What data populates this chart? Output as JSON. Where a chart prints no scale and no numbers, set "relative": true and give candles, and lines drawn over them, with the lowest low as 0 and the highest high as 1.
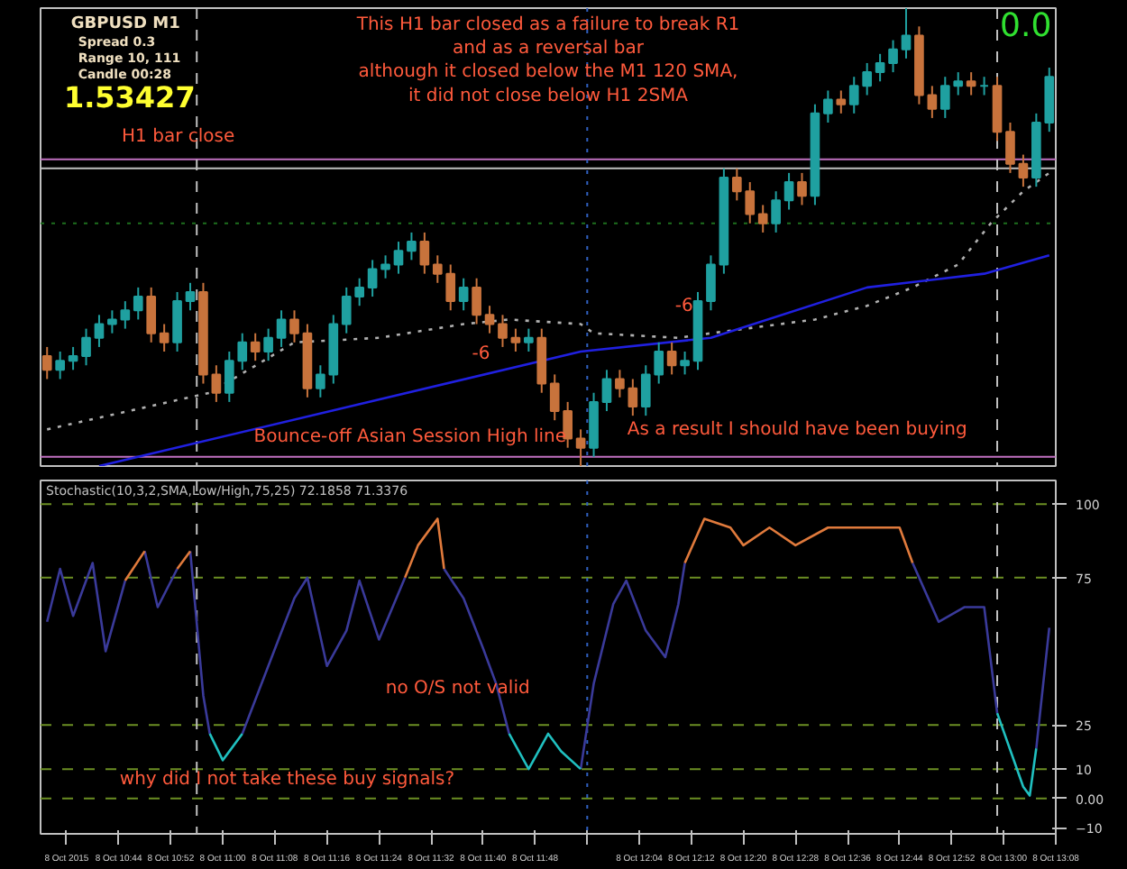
{
  "chart_data": [
    {
      "type": "candlestick",
      "relative": true,
      "tick_labels": false,
      "xlim": [
        "2015-10-08T10:32",
        "2015-10-08T13:08"
      ],
      "x": [
        "2015-10-08T10:33",
        "2015-10-08T10:35",
        "2015-10-08T10:37",
        "2015-10-08T10:39",
        "2015-10-08T10:41",
        "2015-10-08T10:43",
        "2015-10-08T10:45",
        "2015-10-08T10:47",
        "2015-10-08T10:49",
        "2015-10-08T10:51",
        "2015-10-08T10:53",
        "2015-10-08T10:55",
        "2015-10-08T10:57",
        "2015-10-08T10:59",
        "2015-10-08T11:01",
        "2015-10-08T11:03",
        "2015-10-08T11:05",
        "2015-10-08T11:07",
        "2015-10-08T11:09",
        "2015-10-08T11:11",
        "2015-10-08T11:13",
        "2015-10-08T11:15",
        "2015-10-08T11:17",
        "2015-10-08T11:19",
        "2015-10-08T11:21",
        "2015-10-08T11:23",
        "2015-10-08T11:25",
        "2015-10-08T11:27",
        "2015-10-08T11:29",
        "2015-10-08T11:31",
        "2015-10-08T11:33",
        "2015-10-08T11:35",
        "2015-10-08T11:37",
        "2015-10-08T11:39",
        "2015-10-08T11:41",
        "2015-10-08T11:43",
        "2015-10-08T11:45",
        "2015-10-08T11:47",
        "2015-10-08T11:49",
        "2015-10-08T11:51",
        "2015-10-08T11:53",
        "2015-10-08T11:55",
        "2015-10-08T11:57",
        "2015-10-08T11:59",
        "2015-10-08T12:01",
        "2015-10-08T12:03",
        "2015-10-08T12:05",
        "2015-10-08T12:07",
        "2015-10-08T12:09",
        "2015-10-08T12:11",
        "2015-10-08T12:13",
        "2015-10-08T12:15",
        "2015-10-08T12:17",
        "2015-10-08T12:19",
        "2015-10-08T12:21",
        "2015-10-08T12:23",
        "2015-10-08T12:25",
        "2015-10-08T12:27",
        "2015-10-08T12:29",
        "2015-10-08T12:31",
        "2015-10-08T12:33",
        "2015-10-08T12:35",
        "2015-10-08T12:37",
        "2015-10-08T12:39",
        "2015-10-08T12:41",
        "2015-10-08T12:43",
        "2015-10-08T12:45",
        "2015-10-08T12:47",
        "2015-10-08T12:49",
        "2015-10-08T12:51",
        "2015-10-08T12:53",
        "2015-10-08T12:55",
        "2015-10-08T12:57",
        "2015-10-08T12:59",
        "2015-10-08T13:01",
        "2015-10-08T13:03",
        "2015-10-08T13:05",
        "2015-10-08T13:07"
      ],
      "ohlc": [
        [
          0.24,
          0.26,
          0.19,
          0.21
        ],
        [
          0.21,
          0.25,
          0.19,
          0.23
        ],
        [
          0.23,
          0.26,
          0.21,
          0.24
        ],
        [
          0.24,
          0.3,
          0.22,
          0.28
        ],
        [
          0.28,
          0.33,
          0.26,
          0.31
        ],
        [
          0.31,
          0.34,
          0.29,
          0.32
        ],
        [
          0.32,
          0.36,
          0.3,
          0.34
        ],
        [
          0.34,
          0.39,
          0.32,
          0.37
        ],
        [
          0.37,
          0.39,
          0.27,
          0.29
        ],
        [
          0.29,
          0.31,
          0.25,
          0.27
        ],
        [
          0.27,
          0.38,
          0.25,
          0.36
        ],
        [
          0.36,
          0.4,
          0.34,
          0.38
        ],
        [
          0.38,
          0.4,
          0.18,
          0.2
        ],
        [
          0.2,
          0.22,
          0.14,
          0.16
        ],
        [
          0.16,
          0.25,
          0.14,
          0.23
        ],
        [
          0.23,
          0.29,
          0.21,
          0.27
        ],
        [
          0.27,
          0.29,
          0.23,
          0.25
        ],
        [
          0.25,
          0.3,
          0.23,
          0.28
        ],
        [
          0.28,
          0.34,
          0.26,
          0.32
        ],
        [
          0.32,
          0.34,
          0.27,
          0.29
        ],
        [
          0.29,
          0.31,
          0.15,
          0.17
        ],
        [
          0.17,
          0.22,
          0.15,
          0.2
        ],
        [
          0.2,
          0.33,
          0.18,
          0.31
        ],
        [
          0.31,
          0.39,
          0.29,
          0.37
        ],
        [
          0.37,
          0.41,
          0.35,
          0.39
        ],
        [
          0.39,
          0.45,
          0.37,
          0.43
        ],
        [
          0.43,
          0.46,
          0.41,
          0.44
        ],
        [
          0.44,
          0.49,
          0.42,
          0.47
        ],
        [
          0.47,
          0.51,
          0.45,
          0.49
        ],
        [
          0.49,
          0.51,
          0.42,
          0.44
        ],
        [
          0.44,
          0.46,
          0.4,
          0.42
        ],
        [
          0.42,
          0.44,
          0.34,
          0.36
        ],
        [
          0.36,
          0.41,
          0.34,
          0.39
        ],
        [
          0.39,
          0.41,
          0.31,
          0.33
        ],
        [
          0.33,
          0.35,
          0.29,
          0.31
        ],
        [
          0.31,
          0.33,
          0.26,
          0.28
        ],
        [
          0.28,
          0.3,
          0.25,
          0.27
        ],
        [
          0.27,
          0.3,
          0.25,
          0.28
        ],
        [
          0.28,
          0.3,
          0.16,
          0.18
        ],
        [
          0.18,
          0.2,
          0.1,
          0.12
        ],
        [
          0.12,
          0.14,
          0.04,
          0.06
        ],
        [
          0.06,
          0.08,
          0,
          0.04
        ],
        [
          0.04,
          0.16,
          0.02,
          0.14
        ],
        [
          0.14,
          0.21,
          0.12,
          0.19
        ],
        [
          0.19,
          0.21,
          0.15,
          0.17
        ],
        [
          0.17,
          0.19,
          0.11,
          0.13
        ],
        [
          0.13,
          0.22,
          0.11,
          0.2
        ],
        [
          0.2,
          0.27,
          0.18,
          0.25
        ],
        [
          0.25,
          0.27,
          0.2,
          0.22
        ],
        [
          0.22,
          0.25,
          0.2,
          0.23
        ],
        [
          0.23,
          0.38,
          0.21,
          0.36
        ],
        [
          0.36,
          0.46,
          0.34,
          0.44
        ],
        [
          0.44,
          0.65,
          0.42,
          0.63
        ],
        [
          0.63,
          0.65,
          0.58,
          0.6
        ],
        [
          0.6,
          0.62,
          0.53,
          0.55
        ],
        [
          0.55,
          0.57,
          0.51,
          0.53
        ],
        [
          0.53,
          0.6,
          0.51,
          0.58
        ],
        [
          0.58,
          0.64,
          0.56,
          0.62
        ],
        [
          0.62,
          0.64,
          0.57,
          0.59
        ],
        [
          0.59,
          0.79,
          0.57,
          0.77
        ],
        [
          0.77,
          0.82,
          0.75,
          0.8
        ],
        [
          0.8,
          0.82,
          0.77,
          0.79
        ],
        [
          0.79,
          0.85,
          0.77,
          0.83
        ],
        [
          0.83,
          0.88,
          0.81,
          0.86
        ],
        [
          0.86,
          0.9,
          0.84,
          0.88
        ],
        [
          0.88,
          0.93,
          0.86,
          0.91
        ],
        [
          0.91,
          1,
          0.89,
          0.94
        ],
        [
          0.94,
          0.96,
          0.79,
          0.81
        ],
        [
          0.81,
          0.83,
          0.76,
          0.78
        ],
        [
          0.78,
          0.85,
          0.76,
          0.83
        ],
        [
          0.83,
          0.86,
          0.81,
          0.84
        ],
        [
          0.84,
          0.86,
          0.81,
          0.83
        ],
        [
          0.83,
          0.85,
          0.81,
          0.83
        ],
        [
          0.83,
          0.85,
          0.71,
          0.73
        ],
        [
          0.73,
          0.75,
          0.64,
          0.66
        ],
        [
          0.66,
          0.68,
          0.61,
          0.63
        ],
        [
          0.63,
          0.77,
          0.61,
          0.75
        ],
        [
          0.75,
          0.87,
          0.73,
          0.85
        ]
      ],
      "colors": [
        "#c8733c",
        "#1fa0a0",
        "#1fa0a0",
        "#1fa0a0",
        "#1fa0a0",
        "#1fa0a0",
        "#1fa0a0",
        "#1fa0a0",
        "#c8733c",
        "#c8733c",
        "#1fa0a0",
        "#1fa0a0",
        "#c8733c",
        "#c8733c",
        "#1fa0a0",
        "#1fa0a0",
        "#c8733c",
        "#1fa0a0",
        "#1fa0a0",
        "#c8733c",
        "#c8733c",
        "#1fa0a0",
        "#1fa0a0",
        "#1fa0a0",
        "#1fa0a0",
        "#1fa0a0",
        "#1fa0a0",
        "#1fa0a0",
        "#1fa0a0",
        "#c8733c",
        "#c8733c",
        "#c8733c",
        "#1fa0a0",
        "#c8733c",
        "#c8733c",
        "#c8733c",
        "#c8733c",
        "#1fa0a0",
        "#c8733c",
        "#c8733c",
        "#c8733c",
        "#c8733c",
        "#1fa0a0",
        "#1fa0a0",
        "#c8733c",
        "#c8733c",
        "#1fa0a0",
        "#1fa0a0",
        "#c8733c",
        "#1fa0a0",
        "#1fa0a0",
        "#1fa0a0",
        "#1fa0a0",
        "#c8733c",
        "#c8733c",
        "#c8733c",
        "#1fa0a0",
        "#1fa0a0",
        "#c8733c",
        "#1fa0a0",
        "#1fa0a0",
        "#c8733c",
        "#1fa0a0",
        "#1fa0a0",
        "#1fa0a0",
        "#1fa0a0",
        "#1fa0a0",
        "#c8733c",
        "#c8733c",
        "#1fa0a0",
        "#1fa0a0",
        "#c8733c",
        "#1fa0a0",
        "#c8733c",
        "#c8733c",
        "#c8733c",
        "#1fa0a0",
        "#1fa0a0"
      ],
      "series": [
        {
          "type": "line",
          "color": "#b0b0b0",
          "line_style": "dotted",
          "x": [
            "2015-10-08T10:33",
            "2015-10-08T10:58",
            "2015-10-08T11:11",
            "2015-10-08T11:24",
            "2015-10-08T11:37",
            "2015-10-08T11:44",
            "2015-10-08T11:55",
            "2015-10-08T11:57",
            "2015-10-08T12:10",
            "2015-10-08T12:15",
            "2015-10-08T12:31",
            "2015-10-08T12:39",
            "2015-10-08T12:46",
            "2015-10-08T12:53",
            "2015-10-08T12:58",
            "2015-10-08T13:03",
            "2015-10-08T13:07"
          ],
          "values": [
            0.08,
            0.16,
            0.27,
            0.28,
            0.31,
            0.32,
            0.31,
            0.29,
            0.28,
            0.29,
            0.32,
            0.35,
            0.39,
            0.44,
            0.53,
            0.6,
            0.64
          ]
        },
        {
          "type": "line",
          "color": "#2020e0",
          "line_style": "solid",
          "x": [
            "2015-10-08T10:41",
            "2015-10-08T11:55",
            "2015-10-08T12:15",
            "2015-10-08T12:39",
            "2015-10-08T12:57",
            "2015-10-08T13:07"
          ],
          "values": [
            0,
            0.25,
            0.28,
            0.39,
            0.42,
            0.46
          ]
        }
      ],
      "ref_lines": [
        {
          "axis": "y",
          "value": 0.67,
          "color": "#c070c0",
          "line_style": "solid"
        },
        {
          "axis": "y",
          "value": 0.65,
          "color": "#c0c0c0",
          "line_style": "solid"
        },
        {
          "axis": "y",
          "value": 0.53,
          "color": "#1e6e1e",
          "line_style": "dotted"
        },
        {
          "axis": "y",
          "value": 0.02,
          "color": "#c070c0",
          "line_style": "solid"
        },
        {
          "axis": "x",
          "value": "2015-10-08T10:56",
          "color": "#c0c0c0",
          "line_style": "dashed"
        },
        {
          "axis": "x",
          "value": "2015-10-08T11:56",
          "color": "#3060c0",
          "line_style": "dotted"
        },
        {
          "axis": "x",
          "value": "2015-10-08T12:59",
          "color": "#c0c0c0",
          "line_style": "dashed"
        }
      ],
      "annotations": [
        "GBPUSD  M1",
        "Spread  0.3",
        "Range  10, 111",
        "Candle  00:28",
        "1.53427",
        "This H1 bar closed as a failure to break R1\nand as a reversal bar\nalthough it closed below the M1 120 SMA,\nit did not close below H1 2SMA",
        "H1 bar close",
        "As a result I should have been buying",
        "0.0",
        "-6",
        "-6",
        "Bounce-off Asian Session High line"
      ]
    },
    {
      "type": "line",
      "title": "Stochastic(10,3,2,SMA,Low/High,75,25) 72.1858 71.3376",
      "xlim": [
        "2015-10-08T10:32",
        "2015-10-08T13:08"
      ],
      "xticks": [
        {
          "value": "2015-10-08T10:36",
          "label": "8 Oct 2015"
        },
        {
          "value": "2015-10-08T10:44",
          "label": "8 Oct 10:44"
        },
        {
          "value": "2015-10-08T10:52",
          "label": "8 Oct 10:52"
        },
        {
          "value": "2015-10-08T11:00",
          "label": "8 Oct 11:00"
        },
        {
          "value": "2015-10-08T11:08",
          "label": "8 Oct 11:08"
        },
        {
          "value": "2015-10-08T11:16",
          "label": "8 Oct 11:16"
        },
        {
          "value": "2015-10-08T11:24",
          "label": "8 Oct 11:24"
        },
        {
          "value": "2015-10-08T11:32",
          "label": "8 Oct 11:32"
        },
        {
          "value": "2015-10-08T11:40",
          "label": "8 Oct 11:40"
        },
        {
          "value": "2015-10-08T11:48",
          "label": "8 Oct 11:48"
        },
        {
          "value": "2015-10-08T11:56",
          "label": null
        },
        {
          "value": "2015-10-08T12:04",
          "label": "8 Oct 12:04"
        },
        {
          "value": "2015-10-08T12:12",
          "label": "8 Oct 12:12"
        },
        {
          "value": "2015-10-08T12:20",
          "label": "8 Oct 12:20"
        },
        {
          "value": "2015-10-08T12:28",
          "label": "8 Oct 12:28"
        },
        {
          "value": "2015-10-08T12:36",
          "label": "8 Oct 12:36"
        },
        {
          "value": "2015-10-08T12:44",
          "label": "8 Oct 12:44"
        },
        {
          "value": "2015-10-08T12:52",
          "label": "8 Oct 12:52"
        },
        {
          "value": "2015-10-08T13:00",
          "label": "8 Oct 13:00"
        },
        {
          "value": "2015-10-08T13:08",
          "label": "8 Oct 13:08"
        }
      ],
      "ylim": [
        -12,
        108
      ],
      "yticks": [
        -10,
        {
          "value": 0,
          "label": "0.00"
        },
        10,
        25,
        75,
        100
      ],
      "series": [
        {
          "color": "#3a3a9a",
          "x": [
            "2015-10-08T10:33",
            "2015-10-08T10:35",
            "2015-10-08T10:37",
            "2015-10-08T10:40",
            "2015-10-08T10:42",
            "2015-10-08T10:45",
            "2015-10-08T10:46",
            "2015-10-08T10:48",
            "2015-10-08T10:50",
            "2015-10-08T10:53",
            "2015-10-08T10:54",
            "2015-10-08T10:55",
            "2015-10-08T10:57",
            "2015-10-08T10:58",
            "2015-10-08T10:59",
            "2015-10-08T11:03",
            "2015-10-08T11:07",
            "2015-10-08T11:11",
            "2015-10-08T11:13",
            "2015-10-08T11:16",
            "2015-10-08T11:19",
            "2015-10-08T11:21",
            "2015-10-08T11:24",
            "2015-10-08T11:28",
            "2015-10-08T11:29",
            "2015-10-08T11:34",
            "2015-10-08T11:37",
            "2015-10-08T11:40",
            "2015-10-08T11:42",
            "2015-10-08T11:44",
            "2015-10-08T11:45",
            "2015-10-08T11:55",
            "2015-10-08T11:57",
            "2015-10-08T12:00",
            "2015-10-08T12:02",
            "2015-10-08T12:05",
            "2015-10-08T12:08",
            "2015-10-08T12:10",
            "2015-10-08T12:11",
            "2015-10-08T12:12",
            "2015-10-08T12:46",
            "2015-10-08T12:50",
            "2015-10-08T12:54",
            "2015-10-08T12:57",
            "2015-10-08T12:59",
            "2015-10-08T13:00",
            "2015-10-08T13:05",
            "2015-10-08T13:07"
          ],
          "values": [
            60,
            78,
            62,
            80,
            50,
            74,
            null,
            84,
            65,
            78,
            null,
            84,
            35,
            22,
            null,
            22,
            45,
            68,
            75,
            45,
            57,
            74,
            54,
            75,
            null,
            78,
            68,
            51,
            39,
            22,
            null,
            10,
            39,
            66,
            74,
            57,
            48,
            66,
            80,
            null,
            80,
            60,
            65,
            65,
            29,
            null,
            17,
            58
          ]
        },
        {
          "color": "#e07a3c",
          "x": [
            "2015-10-08T10:45",
            "2015-10-08T10:48",
            "2015-10-08T10:50",
            "2015-10-08T10:53",
            "2015-10-08T10:55",
            "2015-10-08T10:56",
            "2015-10-08T11:28",
            "2015-10-08T11:30",
            "2015-10-08T11:33",
            "2015-10-08T11:34",
            "2015-10-08T11:35",
            "2015-10-08T12:11",
            "2015-10-08T12:14",
            "2015-10-08T12:18",
            "2015-10-08T12:20",
            "2015-10-08T12:24",
            "2015-10-08T12:28",
            "2015-10-08T12:33",
            "2015-10-08T12:39",
            "2015-10-08T12:44",
            "2015-10-08T12:46"
          ],
          "values": [
            74,
            84,
            null,
            78,
            84,
            null,
            75,
            86,
            95,
            78,
            null,
            80,
            95,
            92,
            86,
            92,
            86,
            92,
            92,
            92,
            80
          ]
        },
        {
          "color": "#20c0c0",
          "x": [
            "2015-10-08T10:58",
            "2015-10-08T11:00",
            "2015-10-08T11:03",
            "2015-10-08T11:04",
            "2015-10-08T11:44",
            "2015-10-08T11:47",
            "2015-10-08T11:50",
            "2015-10-08T11:52",
            "2015-10-08T11:55",
            "2015-10-08T11:56",
            "2015-10-08T12:59",
            "2015-10-08T13:03",
            "2015-10-08T13:04",
            "2015-10-08T13:05"
          ],
          "values": [
            22,
            13,
            22,
            null,
            22,
            10,
            22,
            16,
            10,
            null,
            29,
            4,
            1,
            17
          ]
        }
      ],
      "ref_lines": [
        {
          "axis": "y",
          "value": 100,
          "color": "#6b8e23",
          "line_style": "dashed"
        },
        {
          "axis": "y",
          "value": 75,
          "color": "#6b8e23",
          "line_style": "dashed"
        },
        {
          "axis": "y",
          "value": 25,
          "color": "#6b8e23",
          "line_style": "dashed"
        },
        {
          "axis": "y",
          "value": 10,
          "color": "#6b8e23",
          "line_style": "dashed"
        },
        {
          "axis": "y",
          "value": 0,
          "color": "#6b8e23",
          "line_style": "dashed"
        },
        {
          "axis": "x",
          "value": "2015-10-08T10:56",
          "color": "#c0c0c0",
          "line_style": "dashed"
        },
        {
          "axis": "x",
          "value": "2015-10-08T11:56",
          "color": "#3060c0",
          "line_style": "dotted"
        },
        {
          "axis": "x",
          "value": "2015-10-08T12:59",
          "color": "#c0c0c0",
          "line_style": "dashed"
        }
      ],
      "annotations": [
        "no O/S not valid",
        "why did I not take these buy signals?"
      ]
    }
  ]
}
